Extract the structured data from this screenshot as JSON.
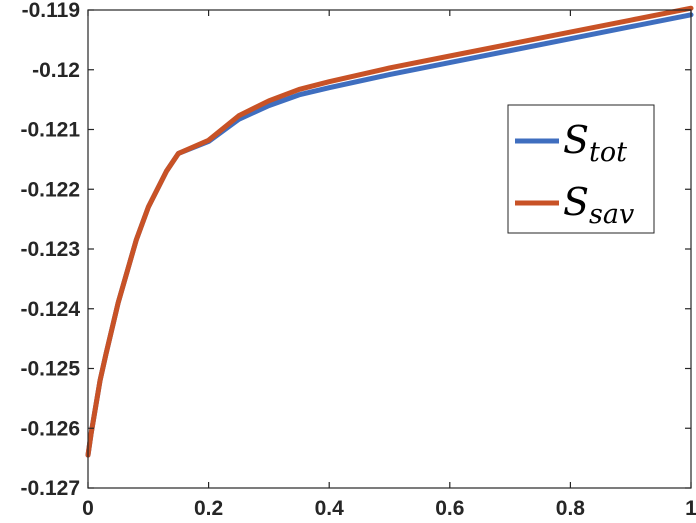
{
  "chart_data": {
    "type": "line",
    "title": "",
    "xlabel": "",
    "ylabel": "",
    "xlim": [
      0,
      1
    ],
    "ylim": [
      -0.127,
      -0.119
    ],
    "x_ticks": [
      "0",
      "0.2",
      "0.4",
      "0.6",
      "0.8",
      "1"
    ],
    "y_ticks": [
      "-0.119",
      "-0.12",
      "-0.121",
      "-0.122",
      "-0.123",
      "-0.124",
      "-0.125",
      "-0.126",
      "-0.127"
    ],
    "grid": false,
    "legend_position": "top-right",
    "series": [
      {
        "name": "S_tot",
        "legend_main": "S",
        "legend_sub": "tot",
        "color": "#3F6EBF",
        "x": [
          0.0,
          0.005,
          0.01,
          0.02,
          0.03,
          0.05,
          0.08,
          0.1,
          0.13,
          0.15,
          0.2,
          0.25,
          0.3,
          0.35,
          0.4,
          0.5,
          0.6,
          0.7,
          0.8,
          0.9,
          1.0
        ],
        "y": [
          -0.12645,
          -0.1261,
          -0.1258,
          -0.1252,
          -0.12475,
          -0.1239,
          -0.12285,
          -0.1223,
          -0.1217,
          -0.1214,
          -0.1212,
          -0.12083,
          -0.1206,
          -0.12042,
          -0.1203,
          -0.12008,
          -0.11988,
          -0.11968,
          -0.11948,
          -0.11928,
          -0.11908
        ]
      },
      {
        "name": "S_sav",
        "legend_main": "S",
        "legend_sub": "sav",
        "color": "#C85226",
        "x": [
          0.0,
          0.005,
          0.01,
          0.02,
          0.03,
          0.05,
          0.08,
          0.1,
          0.13,
          0.15,
          0.2,
          0.25,
          0.3,
          0.35,
          0.4,
          0.5,
          0.6,
          0.7,
          0.8,
          0.9,
          1.0
        ],
        "y": [
          -0.12645,
          -0.1261,
          -0.1258,
          -0.1252,
          -0.12475,
          -0.1239,
          -0.12285,
          -0.1223,
          -0.1217,
          -0.1214,
          -0.12118,
          -0.12077,
          -0.12052,
          -0.12033,
          -0.1202,
          -0.11997,
          -0.11977,
          -0.11957,
          -0.11937,
          -0.11917,
          -0.11897
        ]
      }
    ]
  }
}
